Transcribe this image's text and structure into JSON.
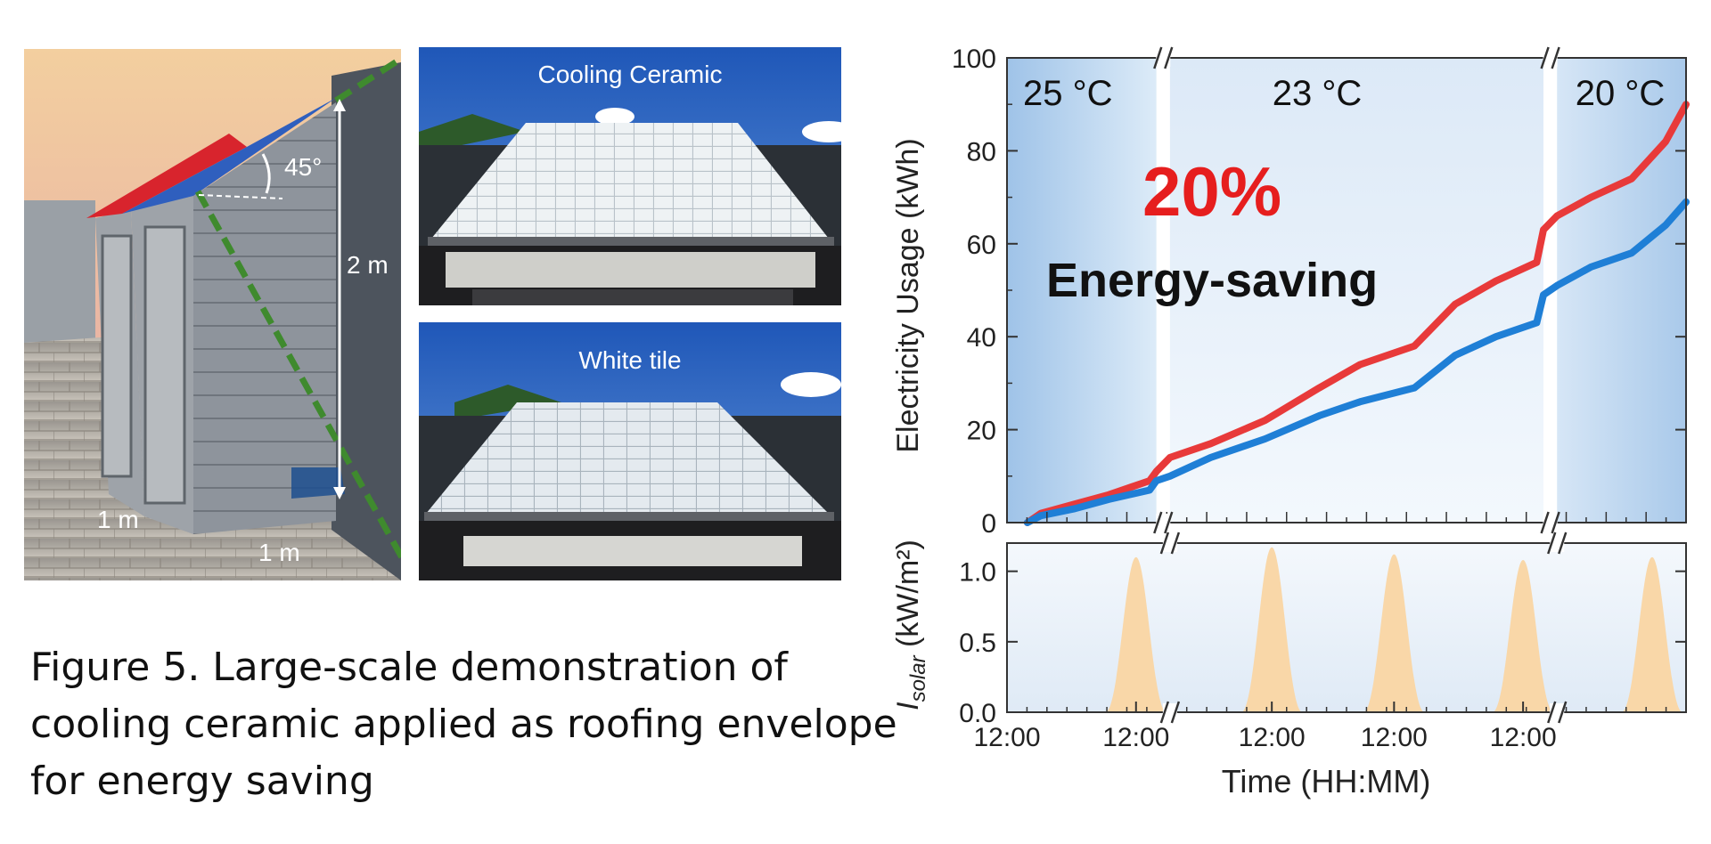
{
  "shed_photo": {
    "labels": {
      "angle": "45°",
      "height": "2 m",
      "width_left": "1 m",
      "width_right": "1 m"
    }
  },
  "roof_photos": [
    {
      "label": "Cooling Ceramic"
    },
    {
      "label": "White tile"
    }
  ],
  "caption": {
    "lines": [
      "Figure 5. Large-scale demonstration of",
      "cooling ceramic applied as roofing envelope",
      "for energy saving"
    ]
  },
  "annotation": {
    "percent": "20%",
    "text": "Energy-saving"
  },
  "chart_data": [
    {
      "type": "line",
      "ylabel": "Electricity Usage (kWh)",
      "ylim": [
        0,
        100
      ],
      "yticks": [
        0,
        20,
        40,
        60,
        80,
        100
      ],
      "regions": [
        {
          "label": "25 °C",
          "x_range": [
            0,
            0.22
          ]
        },
        {
          "label": "23 °C",
          "x_range": [
            0.24,
            0.79
          ]
        },
        {
          "label": "20 °C",
          "x_range": [
            0.81,
            1.0
          ]
        }
      ],
      "axis_breaks_x": [
        0.23,
        0.8
      ],
      "colors": {
        "red": "#e83a3a",
        "blue": "#1f7fd6"
      },
      "x": [
        0.03,
        0.05,
        0.1,
        0.15,
        0.21,
        0.22,
        0.24,
        0.3,
        0.38,
        0.46,
        0.52,
        0.6,
        0.66,
        0.72,
        0.78,
        0.79,
        0.81,
        0.86,
        0.92,
        0.97,
        1.0
      ],
      "series": [
        {
          "values": [
            0,
            2,
            4,
            6,
            9,
            11,
            14,
            17,
            22,
            29,
            34,
            38,
            47,
            52,
            56,
            63,
            66,
            70,
            74,
            82,
            90
          ]
        },
        {
          "values": [
            0,
            1.5,
            3,
            5,
            7,
            9,
            10,
            14,
            18,
            23,
            26,
            29,
            36,
            40,
            43,
            49,
            51,
            55,
            58,
            64,
            69
          ]
        }
      ]
    },
    {
      "type": "area",
      "ylabel": "I_solar (kW/m²)",
      "ylabel_main": "I",
      "ylabel_sub": "solar",
      "ylabel_rest": " (kW/m²)",
      "ylim": [
        0,
        1.2
      ],
      "yticks": [
        0.0,
        0.5,
        1.0
      ],
      "ytick_labels": [
        "0.0",
        "0.5",
        "1.0"
      ],
      "xlabel": "Time (HH:MM)",
      "xticks": [
        {
          "x": 0.0,
          "label": "12:00"
        },
        {
          "x": 0.19,
          "label": "12:00"
        },
        {
          "x": 0.39,
          "label": "12:00"
        },
        {
          "x": 0.57,
          "label": "12:00"
        },
        {
          "x": 0.76,
          "label": "12:00"
        }
      ],
      "axis_breaks_x": [
        0.24,
        0.81
      ],
      "color": "#f9d7a8",
      "peaks": [
        {
          "x": 0.19,
          "value": 1.1
        },
        {
          "x": 0.39,
          "value": 1.17
        },
        {
          "x": 0.57,
          "value": 1.12
        },
        {
          "x": 0.76,
          "value": 1.08
        },
        {
          "x": 0.95,
          "value": 1.1
        }
      ]
    }
  ]
}
